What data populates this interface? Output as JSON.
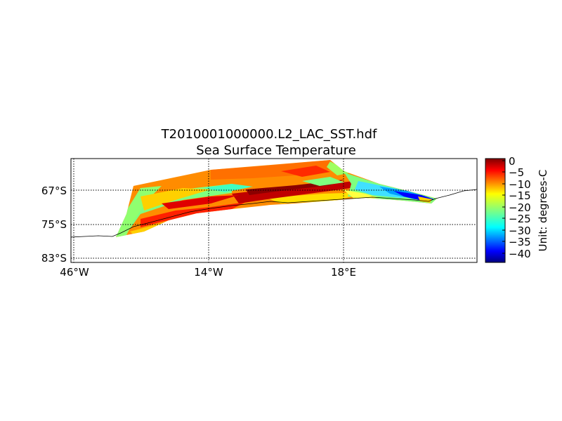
{
  "title": {
    "filename": "T2010001000000.L2_LAC_SST.hdf",
    "variable": "Sea Surface Temperature"
  },
  "map": {
    "lat_labels": [
      "67°S",
      "75°S",
      "83°S"
    ],
    "lon_labels": [
      "46°W",
      "14°W",
      "18°E"
    ],
    "gridlines": "dotted"
  },
  "colorbar": {
    "ticks": [
      "0",
      "−5",
      "−10",
      "−15",
      "−20",
      "−25",
      "−30",
      "−35",
      "−40"
    ],
    "range": [
      -45,
      0
    ],
    "colormap": "jet",
    "unit_label": "Unit: degrees-C"
  },
  "colors": {
    "dark_red": "#7f0000",
    "red": "#ff0000",
    "orange": "#ff8000",
    "yellow": "#ffff00",
    "green": "#80ff80",
    "cyan": "#00ffff",
    "blue": "#0000ff",
    "dark_blue": "#00007f"
  }
}
